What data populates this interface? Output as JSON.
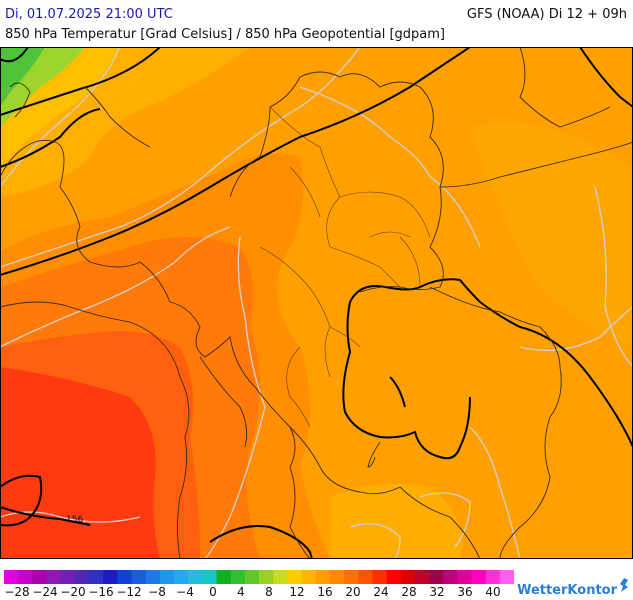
{
  "header": {
    "date_line": "Di, 01.07.2025 21:00 UTC",
    "model_line": "GFS (NOAA) Di 12 + 09h",
    "param_line": "850 hPa Temperatur [Grad Celsius] / 850 hPa Geopotential [gdpam]"
  },
  "map": {
    "region": "Central Europe / Germany",
    "contour_labels": [
      {
        "id": "c156",
        "text": "156"
      }
    ],
    "colors": {
      "temp_4": "#4fc33a",
      "temp_8": "#9cd52e",
      "temp_12": "#ffc800",
      "temp_14": "#ffa600",
      "temp_16": "#ff9800",
      "temp_18": "#ff8a00",
      "temp_20": "#ff6f10",
      "temp_22": "#ff5412",
      "temp_24": "#ff3a10",
      "isotherm": "#c8c8c8",
      "geopotential": "#000000",
      "borders": "#3a2a10"
    }
  },
  "legend": {
    "ticks": [
      "−28",
      "−24",
      "−20",
      "−16",
      "−12",
      "−8",
      "−4",
      "0",
      "4",
      "8",
      "12",
      "16",
      "20",
      "24",
      "28",
      "32",
      "36",
      "40"
    ],
    "colors": [
      "#e400e4",
      "#c800c8",
      "#aa00aa",
      "#8c1ab4",
      "#7020b4",
      "#5028b4",
      "#3030c8",
      "#1c1cc8",
      "#1040d8",
      "#1a5ce0",
      "#1e78e8",
      "#1f96ee",
      "#22aaf0",
      "#22bce0",
      "#14c8c8",
      "#10b020",
      "#30c030",
      "#60c828",
      "#98d028",
      "#c8dc1e",
      "#ffcc00",
      "#ffb400",
      "#ff9e00",
      "#ff8a00",
      "#ff7000",
      "#ff5400",
      "#ff3000",
      "#ff0000",
      "#dd0000",
      "#c0002a",
      "#a0004a",
      "#c0007a",
      "#e0009a",
      "#ff00c0",
      "#ff30d8",
      "#ff60f0"
    ]
  },
  "brand": {
    "name": "WetterKontor"
  }
}
